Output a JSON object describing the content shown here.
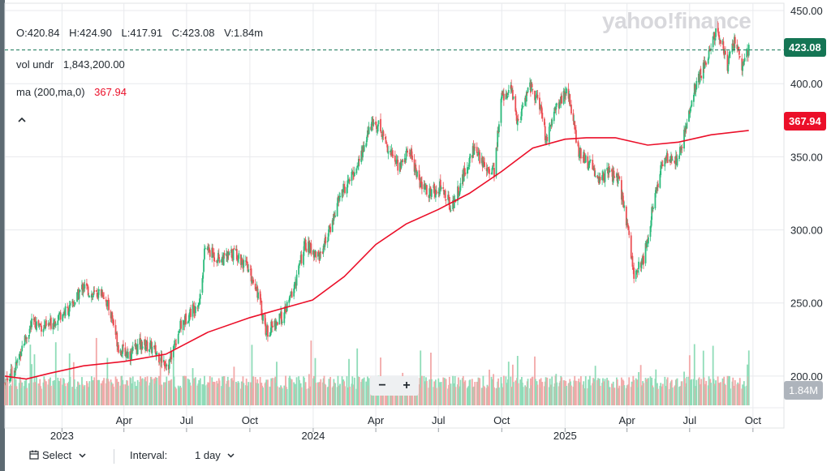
{
  "legend": {
    "open": "O:420.84",
    "high": "H:424.90",
    "low": "L:417.91",
    "close": "C:423.08",
    "volume": "V:1.84m",
    "vol_label": "vol undr",
    "vol_value": "1,843,200.00",
    "ma_label": "ma (200,ma,0)",
    "ma_value": "367.94"
  },
  "logo": "yahoo!finance",
  "tags": {
    "price": "423.08",
    "ma": "367.94",
    "volume": "1.84M"
  },
  "zoom": {
    "minus": "−",
    "plus": "+"
  },
  "toolbar": {
    "select": "Select",
    "interval_label": "Interval:",
    "interval_value": "1 day"
  },
  "colors": {
    "up": "#2dbb7c",
    "down": "#eb4f54",
    "ma": "#eb0f29",
    "price_line": "#147554",
    "volume_up": "#8fdcb8",
    "volume_down": "#f2a8a8"
  },
  "icons": {
    "collapse": "chevron-up-icon",
    "calendar": "calendar-icon",
    "dropdown": "chevron-down-icon"
  },
  "chart_data": {
    "type": "line",
    "y_ticks": [
      450,
      400,
      350,
      300,
      250,
      200
    ],
    "y_tick_labels": [
      "450.00",
      "400.00",
      "350.00",
      "300.00",
      "250.00",
      "200.00"
    ],
    "ylim": [
      180,
      455
    ],
    "x_ticks": [
      {
        "date": "2023-01-01",
        "label": "2023",
        "major": true
      },
      {
        "date": "2023-04-01",
        "label": "Apr",
        "major": false
      },
      {
        "date": "2023-07-01",
        "label": "Jul",
        "major": false
      },
      {
        "date": "2023-10-01",
        "label": "Oct",
        "major": false
      },
      {
        "date": "2024-01-01",
        "label": "2024",
        "major": true
      },
      {
        "date": "2024-04-01",
        "label": "Apr",
        "major": false
      },
      {
        "date": "2024-07-01",
        "label": "Jul",
        "major": false
      },
      {
        "date": "2024-10-01",
        "label": "Oct",
        "major": false
      },
      {
        "date": "2025-01-01",
        "label": "2025",
        "major": true
      },
      {
        "date": "2025-04-01",
        "label": "Apr",
        "major": false
      },
      {
        "date": "2025-07-01",
        "label": "Jul",
        "major": false
      },
      {
        "date": "2025-10-01",
        "label": "Oct",
        "major": false
      }
    ],
    "xlim": [
      "2022-10-10",
      "2025-11-15"
    ],
    "last_price": 423.08,
    "price_series": [
      [
        "2022-10-10",
        195
      ],
      [
        "2022-10-25",
        205
      ],
      [
        "2022-11-05",
        222
      ],
      [
        "2022-11-20",
        237
      ],
      [
        "2022-12-10",
        233
      ],
      [
        "2022-12-28",
        242
      ],
      [
        "2023-01-15",
        247
      ],
      [
        "2023-02-01",
        262
      ],
      [
        "2023-02-15",
        255
      ],
      [
        "2023-03-01",
        258
      ],
      [
        "2023-03-15",
        240
      ],
      [
        "2023-03-25",
        218
      ],
      [
        "2023-04-10",
        215
      ],
      [
        "2023-04-25",
        222
      ],
      [
        "2023-05-10",
        220
      ],
      [
        "2023-05-25",
        212
      ],
      [
        "2023-06-05",
        208
      ],
      [
        "2023-06-20",
        232
      ],
      [
        "2023-07-05",
        243
      ],
      [
        "2023-07-20",
        252
      ],
      [
        "2023-07-28",
        288
      ],
      [
        "2023-08-10",
        282
      ],
      [
        "2023-08-25",
        280
      ],
      [
        "2023-09-10",
        285
      ],
      [
        "2023-09-25",
        275
      ],
      [
        "2023-10-10",
        262
      ],
      [
        "2023-10-25",
        230
      ],
      [
        "2023-11-05",
        235
      ],
      [
        "2023-11-20",
        242
      ],
      [
        "2023-12-05",
        262
      ],
      [
        "2023-12-20",
        290
      ],
      [
        "2024-01-10",
        282
      ],
      [
        "2024-01-25",
        300
      ],
      [
        "2024-02-10",
        325
      ],
      [
        "2024-02-25",
        335
      ],
      [
        "2024-03-10",
        350
      ],
      [
        "2024-03-25",
        372
      ],
      [
        "2024-04-05",
        372
      ],
      [
        "2024-04-20",
        355
      ],
      [
        "2024-05-05",
        343
      ],
      [
        "2024-05-20",
        355
      ],
      [
        "2024-06-05",
        330
      ],
      [
        "2024-06-20",
        325
      ],
      [
        "2024-07-05",
        330
      ],
      [
        "2024-07-20",
        315
      ],
      [
        "2024-08-05",
        335
      ],
      [
        "2024-08-20",
        355
      ],
      [
        "2024-09-05",
        345
      ],
      [
        "2024-09-20",
        340
      ],
      [
        "2024-10-01",
        392
      ],
      [
        "2024-10-15",
        395
      ],
      [
        "2024-10-25",
        372
      ],
      [
        "2024-11-10",
        400
      ],
      [
        "2024-11-25",
        385
      ],
      [
        "2024-12-05",
        360
      ],
      [
        "2024-12-20",
        385
      ],
      [
        "2025-01-05",
        395
      ],
      [
        "2025-01-20",
        355
      ],
      [
        "2025-02-05",
        345
      ],
      [
        "2025-02-20",
        335
      ],
      [
        "2025-03-05",
        340
      ],
      [
        "2025-03-20",
        333
      ],
      [
        "2025-04-03",
        300
      ],
      [
        "2025-04-10",
        270
      ],
      [
        "2025-04-25",
        280
      ],
      [
        "2025-05-10",
        320
      ],
      [
        "2025-05-25",
        350
      ],
      [
        "2025-06-10",
        345
      ],
      [
        "2025-06-25",
        368
      ],
      [
        "2025-07-10",
        400
      ],
      [
        "2025-07-25",
        415
      ],
      [
        "2025-08-10",
        440
      ],
      [
        "2025-08-25",
        412
      ],
      [
        "2025-09-05",
        430
      ],
      [
        "2025-09-15",
        412
      ],
      [
        "2025-09-25",
        423
      ]
    ],
    "ma_series": [
      [
        "2022-10-10",
        200
      ],
      [
        "2022-11-10",
        198
      ],
      [
        "2022-12-15",
        202
      ],
      [
        "2023-02-01",
        207
      ],
      [
        "2023-04-01",
        210
      ],
      [
        "2023-06-01",
        215
      ],
      [
        "2023-08-01",
        230
      ],
      [
        "2023-10-01",
        240
      ],
      [
        "2023-11-15",
        246
      ],
      [
        "2023-12-31",
        252
      ],
      [
        "2024-02-15",
        268
      ],
      [
        "2024-04-01",
        290
      ],
      [
        "2024-05-15",
        304
      ],
      [
        "2024-07-01",
        314
      ],
      [
        "2024-08-15",
        325
      ],
      [
        "2024-10-01",
        340
      ],
      [
        "2024-11-15",
        356
      ],
      [
        "2025-01-01",
        362
      ],
      [
        "2025-02-01",
        363
      ],
      [
        "2025-03-15",
        363
      ],
      [
        "2025-05-01",
        358
      ],
      [
        "2025-06-15",
        360
      ],
      [
        "2025-08-01",
        365
      ],
      [
        "2025-09-25",
        368
      ]
    ],
    "volume_max_m": 3.0
  }
}
